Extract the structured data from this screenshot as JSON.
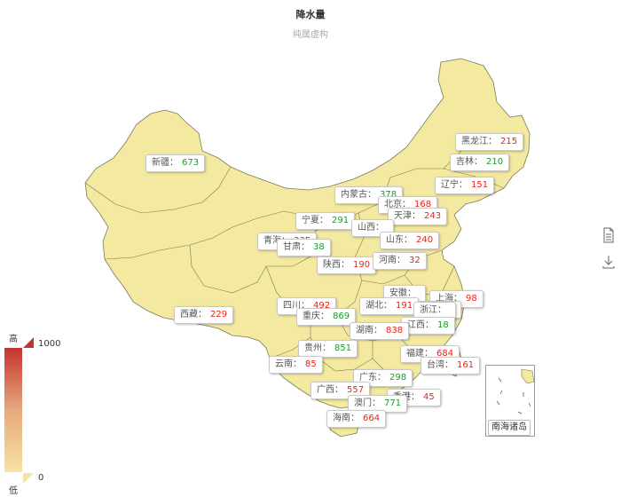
{
  "title": "降水量",
  "subtitle": "纯属虚构",
  "colors": {
    "map_fill": "#f4e9a0",
    "map_stroke": "#7a7a55",
    "value_high": "#e8231b",
    "value_low": "#1b9a2e",
    "legend_high": "#c23531",
    "legend_low": "#f5e3a3"
  },
  "visual_map": {
    "max": "1000",
    "min": "0",
    "high_text": "高",
    "low_text": "低"
  },
  "toolbox": [
    {
      "icon": "data-view-icon"
    },
    {
      "icon": "save-image-icon"
    }
  ],
  "inset": {
    "label": "南海诸岛"
  },
  "regions": [
    {
      "name": "新疆",
      "value": "673",
      "level": "green"
    },
    {
      "name": "西藏",
      "value": "229",
      "level": "red"
    },
    {
      "name": "黑龙江",
      "value": "215",
      "level": "red"
    },
    {
      "name": "吉林",
      "value": "210",
      "level": "green"
    },
    {
      "name": "辽宁",
      "value": "151",
      "level": "red"
    },
    {
      "name": "内蒙古",
      "value": "378",
      "level": "green"
    },
    {
      "name": "北京",
      "value": "168",
      "level": "red"
    },
    {
      "name": "天津",
      "value": "243",
      "level": "red"
    },
    {
      "name": "宁夏",
      "value": "291",
      "level": "green"
    },
    {
      "name": "山西",
      "value": "",
      "level": "red"
    },
    {
      "name": "山东",
      "value": "240",
      "level": "red"
    },
    {
      "name": "青海",
      "value": "335",
      "level": "red"
    },
    {
      "name": "甘肃",
      "value": "38",
      "level": "green"
    },
    {
      "name": "陕西",
      "value": "190",
      "level": "red"
    },
    {
      "name": "河南",
      "value": "32",
      "level": "red"
    },
    {
      "name": "安徽",
      "value": "",
      "level": "red"
    },
    {
      "name": "上海",
      "value": "98",
      "level": "red"
    },
    {
      "name": "江苏",
      "value": "",
      "level": "red"
    },
    {
      "name": "四川",
      "value": "492",
      "level": "red"
    },
    {
      "name": "湖北",
      "value": "191",
      "level": "red"
    },
    {
      "name": "浙江",
      "value": "",
      "level": "red"
    },
    {
      "name": "重庆",
      "value": "869",
      "level": "green"
    },
    {
      "name": "江西",
      "value": "18",
      "level": "green"
    },
    {
      "name": "湖南",
      "value": "838",
      "level": "red"
    },
    {
      "name": "贵州",
      "value": "851",
      "level": "green"
    },
    {
      "name": "福建",
      "value": "684",
      "level": "red"
    },
    {
      "name": "云南",
      "value": "85",
      "level": "red"
    },
    {
      "name": "台湾",
      "value": "161",
      "level": "red"
    },
    {
      "name": "广东",
      "value": "298",
      "level": "green"
    },
    {
      "name": "广西",
      "value": "557",
      "level": "red"
    },
    {
      "name": "香港",
      "value": "45",
      "level": "red"
    },
    {
      "name": "澳门",
      "value": "771",
      "level": "green"
    },
    {
      "name": "海南",
      "value": "664",
      "level": "red"
    }
  ]
}
